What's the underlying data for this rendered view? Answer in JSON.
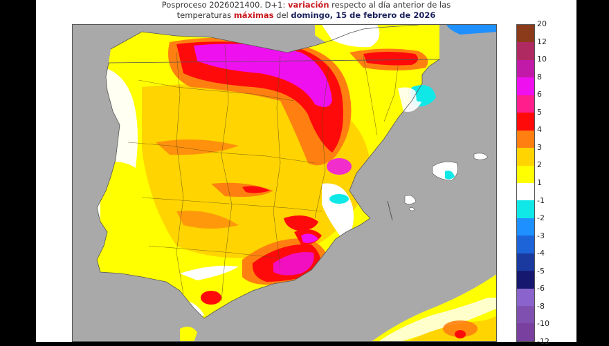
{
  "title": {
    "line1_prefix": "Posproceso 2026021400. D+1: ",
    "line1_highlight": "variación",
    "line1_suffix": " respecto al día anterior de las",
    "line2_prefix": "temperaturas ",
    "line2_highlight": "máximas",
    "line2_mid": " del ",
    "line2_date": "domingo, 15 de febrero de 2026"
  },
  "map": {
    "region": "Península Ibérica y Baleares",
    "sea_color": "#a9a9a9",
    "variable": "Variación de temperatura máxima (°C)"
  },
  "colorbar": {
    "segments": [
      {
        "color": "#8b3a1a",
        "upper": "20"
      },
      {
        "color": "#b02a62",
        "upper": "12"
      },
      {
        "color": "#c21aa8",
        "upper": "10"
      },
      {
        "color": "#ee10ee",
        "upper": "8"
      },
      {
        "color": "#ff1e8c",
        "upper": "6"
      },
      {
        "color": "#ff0a0a",
        "upper": "5"
      },
      {
        "color": "#ff8010",
        "upper": "4"
      },
      {
        "color": "#ffd400",
        "upper": "3"
      },
      {
        "color": "#ffff00",
        "upper": "2"
      },
      {
        "color": "#ffffff",
        "upper": "1"
      },
      {
        "color": "#10e8e8",
        "upper": "-1"
      },
      {
        "color": "#1e90ff",
        "upper": "-2"
      },
      {
        "color": "#1c64d8",
        "upper": "-3"
      },
      {
        "color": "#1a3aa0",
        "upper": "-4"
      },
      {
        "color": "#161870",
        "upper": "-5"
      },
      {
        "color": "#8a64cc",
        "upper": "-6"
      },
      {
        "color": "#8050b0",
        "upper": "-8"
      },
      {
        "color": "#7a40a0",
        "upper": "-10"
      }
    ],
    "tick_labels": [
      "20",
      "12",
      "10",
      "8",
      "6",
      "5",
      "4",
      "3",
      "2",
      "1",
      "-1",
      "-2",
      "-3",
      "-4",
      "-5",
      "-6",
      "-8",
      "-10",
      "-12"
    ]
  }
}
